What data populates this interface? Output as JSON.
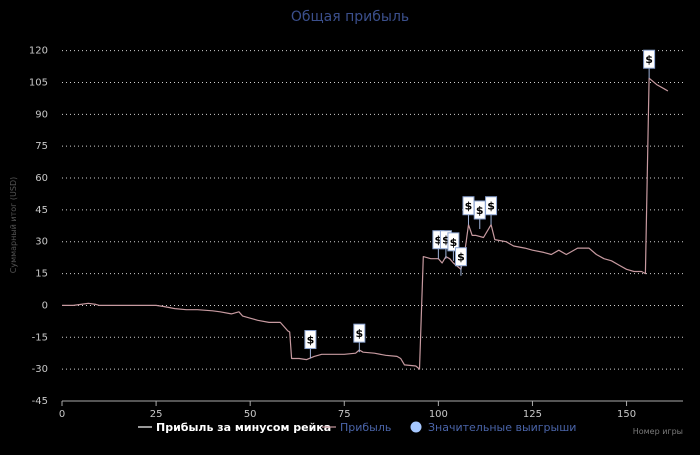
{
  "chart_data": {
    "type": "line",
    "title": "Общая прибыль",
    "xlabel": "Номер игры",
    "ylabel": "Суммарный итог (USD)",
    "xlim": [
      0,
      165
    ],
    "ylim": [
      -45,
      125
    ],
    "x_ticks": [
      0,
      25,
      50,
      75,
      100,
      125,
      150
    ],
    "y_ticks": [
      -45,
      -30,
      -15,
      0,
      15,
      30,
      45,
      60,
      75,
      90,
      105,
      120
    ],
    "grid": true,
    "legend_position": "bottom-center",
    "legend": [
      {
        "label": "Прибыль за минусом рейка",
        "color": "#ffffff",
        "kind": "line"
      },
      {
        "label": "Прибыль",
        "color": "#c79aa0",
        "kind": "line"
      },
      {
        "label": "Значительные выигрыши",
        "color": "#a6c8ff",
        "kind": "marker"
      }
    ],
    "series": [
      {
        "name": "Прибыль",
        "color": "#c79aa0",
        "points": [
          [
            0,
            0
          ],
          [
            3,
            0
          ],
          [
            5,
            0.5
          ],
          [
            7,
            1
          ],
          [
            9,
            0.5
          ],
          [
            10,
            0
          ],
          [
            15,
            0
          ],
          [
            20,
            0
          ],
          [
            25,
            0
          ],
          [
            27,
            -0.5
          ],
          [
            30,
            -1.5
          ],
          [
            33,
            -2
          ],
          [
            36,
            -2
          ],
          [
            40,
            -2.5
          ],
          [
            42,
            -3
          ],
          [
            45,
            -4
          ],
          [
            47,
            -3
          ],
          [
            48,
            -5
          ],
          [
            50,
            -6
          ],
          [
            52,
            -7
          ],
          [
            55,
            -8
          ],
          [
            58,
            -8
          ],
          [
            60,
            -12
          ],
          [
            60.5,
            -12.5
          ],
          [
            61,
            -25
          ],
          [
            63,
            -25
          ],
          [
            65,
            -25.5
          ],
          [
            67,
            -24
          ],
          [
            69,
            -23
          ],
          [
            72,
            -23
          ],
          [
            75,
            -23
          ],
          [
            78,
            -22.5
          ],
          [
            79,
            -21
          ],
          [
            80,
            -22
          ],
          [
            83,
            -22.5
          ],
          [
            86,
            -23.5
          ],
          [
            89,
            -24
          ],
          [
            90,
            -25
          ],
          [
            91,
            -28
          ],
          [
            94,
            -28.5
          ],
          [
            95,
            -30
          ],
          [
            96,
            23
          ],
          [
            98,
            22
          ],
          [
            100,
            22
          ],
          [
            101,
            20
          ],
          [
            102,
            23
          ],
          [
            103,
            22
          ],
          [
            104,
            20
          ],
          [
            106,
            17
          ],
          [
            107,
            25
          ],
          [
            108,
            38
          ],
          [
            109,
            33
          ],
          [
            110,
            33
          ],
          [
            112,
            32
          ],
          [
            113,
            35
          ],
          [
            114,
            38
          ],
          [
            115,
            31
          ],
          [
            118,
            30
          ],
          [
            120,
            28
          ],
          [
            123,
            27
          ],
          [
            125,
            26
          ],
          [
            128,
            25
          ],
          [
            130,
            24
          ],
          [
            132,
            26
          ],
          [
            134,
            24
          ],
          [
            135,
            25
          ],
          [
            137,
            27
          ],
          [
            140,
            27
          ],
          [
            142,
            24
          ],
          [
            144,
            22
          ],
          [
            146,
            21
          ],
          [
            148,
            19
          ],
          [
            150,
            17
          ],
          [
            152,
            16
          ],
          [
            154,
            16
          ],
          [
            155,
            15
          ],
          [
            156,
            107
          ],
          [
            158,
            104
          ],
          [
            160,
            102
          ],
          [
            161,
            101
          ]
        ]
      }
    ],
    "big_wins": [
      {
        "x": 66,
        "y": -25,
        "label": "$"
      },
      {
        "x": 79,
        "y": -22,
        "label": "$"
      },
      {
        "x": 100,
        "y": 22,
        "label": "$"
      },
      {
        "x": 102,
        "y": 22,
        "label": "$"
      },
      {
        "x": 104,
        "y": 21,
        "label": "$"
      },
      {
        "x": 106,
        "y": 14,
        "label": "$"
      },
      {
        "x": 108,
        "y": 38,
        "label": "$"
      },
      {
        "x": 111,
        "y": 36,
        "label": "$"
      },
      {
        "x": 114,
        "y": 38,
        "label": "$"
      },
      {
        "x": 156,
        "y": 107,
        "label": "$"
      }
    ]
  }
}
